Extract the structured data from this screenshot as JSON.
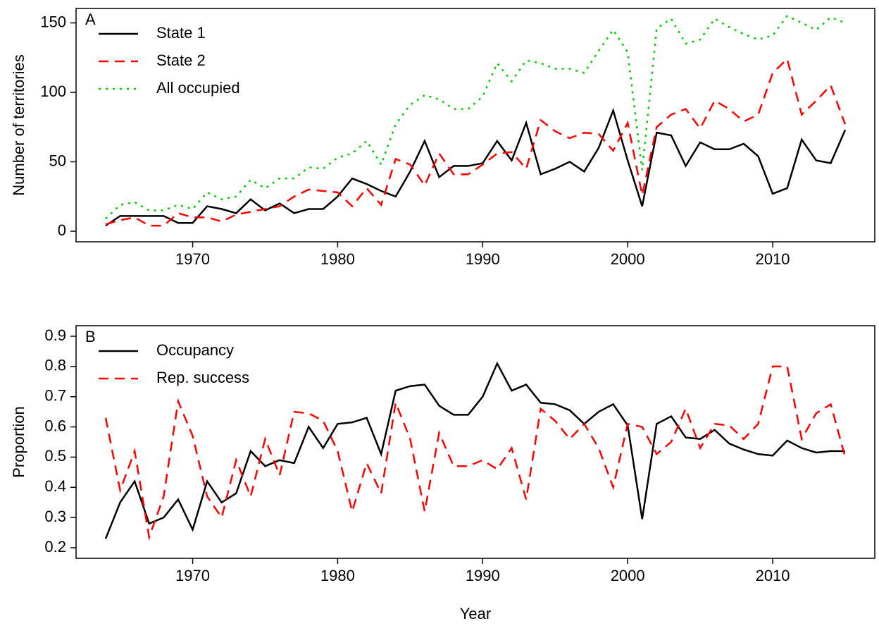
{
  "chart_data": [
    {
      "type": "line",
      "annotation": "A",
      "ylabel": "Number of territories",
      "x": [
        1964,
        1965,
        1966,
        1967,
        1968,
        1969,
        1970,
        1971,
        1972,
        1973,
        1974,
        1975,
        1976,
        1977,
        1978,
        1979,
        1980,
        1981,
        1982,
        1983,
        1984,
        1985,
        1986,
        1987,
        1988,
        1989,
        1990,
        1991,
        1992,
        1993,
        1994,
        1995,
        1996,
        1997,
        1998,
        1999,
        2000,
        2001,
        2002,
        2003,
        2004,
        2005,
        2006,
        2007,
        2008,
        2009,
        2010,
        2011,
        2012,
        2013,
        2014,
        2015
      ],
      "series": [
        {
          "name": "State 1",
          "color": "#000000",
          "linestyle": "solid",
          "values": [
            4,
            11,
            11,
            11,
            11,
            6,
            6,
            18,
            16,
            13,
            23,
            15,
            20,
            13,
            16,
            16,
            25,
            38,
            34,
            29,
            25,
            43,
            65,
            39,
            47,
            47,
            49,
            65,
            51,
            78,
            41,
            45,
            50,
            43,
            60,
            87,
            51,
            18,
            71,
            69,
            47,
            64,
            59,
            59,
            63,
            54,
            27,
            31,
            66,
            51,
            49,
            73
          ]
        },
        {
          "name": "State 2",
          "color": "#ff0000",
          "linestyle": "dashed",
          "values": [
            5,
            8,
            10,
            4,
            4,
            13,
            10,
            10,
            7,
            12,
            14,
            16,
            18,
            25,
            30,
            29,
            28,
            18,
            31,
            19,
            52,
            48,
            33,
            56,
            41,
            41,
            48,
            56,
            57,
            45,
            80,
            72,
            67,
            71,
            70,
            58,
            78,
            26,
            75,
            84,
            88,
            74,
            94,
            88,
            79,
            84,
            114,
            124,
            84,
            94,
            105,
            77
          ]
        },
        {
          "name": "All occupied",
          "color": "#00cd00",
          "linestyle": "dotted",
          "values": [
            9,
            19,
            21,
            15,
            15,
            19,
            16,
            28,
            23,
            25,
            37,
            31,
            38,
            38,
            46,
            45,
            53,
            56,
            65,
            48,
            77,
            91,
            98,
            95,
            88,
            88,
            97,
            121,
            108,
            123,
            121,
            117,
            117,
            114,
            130,
            145,
            129,
            44,
            146,
            153,
            135,
            138,
            153,
            147,
            142,
            138,
            141,
            155,
            150,
            145,
            154,
            150
          ]
        }
      ],
      "xlim": [
        1961.96,
        2017.04
      ],
      "xticks": [
        1970,
        1980,
        1990,
        2000,
        2010
      ],
      "ylim": [
        -7.6,
        160.4
      ],
      "yticks": [
        0,
        50,
        100,
        150
      ],
      "legend": "top-left"
    },
    {
      "type": "line",
      "annotation": "B",
      "ylabel": "Proportion",
      "xlabel": "Year",
      "x": [
        1964,
        1965,
        1966,
        1967,
        1968,
        1969,
        1970,
        1971,
        1972,
        1973,
        1974,
        1975,
        1976,
        1977,
        1978,
        1979,
        1980,
        1981,
        1982,
        1983,
        1984,
        1985,
        1986,
        1987,
        1988,
        1989,
        1990,
        1991,
        1992,
        1993,
        1994,
        1995,
        1996,
        1997,
        1998,
        1999,
        2000,
        2001,
        2002,
        2003,
        2004,
        2005,
        2006,
        2007,
        2008,
        2009,
        2010,
        2011,
        2012,
        2013,
        2014,
        2015
      ],
      "series": [
        {
          "name": "Occupancy",
          "color": "#000000",
          "linestyle": "solid",
          "values": [
            0.23,
            0.35,
            0.42,
            0.28,
            0.3,
            0.36,
            0.26,
            0.42,
            0.35,
            0.38,
            0.52,
            0.47,
            0.49,
            0.48,
            0.6,
            0.53,
            0.61,
            0.615,
            0.63,
            0.51,
            0.72,
            0.735,
            0.74,
            0.67,
            0.64,
            0.64,
            0.7,
            0.81,
            0.72,
            0.74,
            0.68,
            0.675,
            0.655,
            0.61,
            0.65,
            0.675,
            0.605,
            0.295,
            0.61,
            0.635,
            0.565,
            0.56,
            0.59,
            0.545,
            0.525,
            0.51,
            0.505,
            0.555,
            0.53,
            0.515,
            0.52,
            0.52
          ]
        },
        {
          "name": "Rep. success",
          "color": "#ff0000",
          "linestyle": "dashed",
          "values": [
            0.63,
            0.39,
            0.52,
            0.235,
            0.37,
            0.685,
            0.57,
            0.37,
            0.3,
            0.49,
            0.37,
            0.56,
            0.44,
            0.65,
            0.645,
            0.62,
            0.52,
            0.32,
            0.48,
            0.38,
            0.68,
            0.56,
            0.32,
            0.58,
            0.47,
            0.47,
            0.49,
            0.46,
            0.53,
            0.36,
            0.66,
            0.62,
            0.56,
            0.61,
            0.53,
            0.4,
            0.61,
            0.6,
            0.51,
            0.55,
            0.66,
            0.53,
            0.61,
            0.605,
            0.56,
            0.61,
            0.8,
            0.8,
            0.56,
            0.645,
            0.675,
            0.5
          ]
        }
      ],
      "xlim": [
        1961.96,
        2017.04
      ],
      "xticks": [
        1970,
        1980,
        1990,
        2000,
        2010
      ],
      "ylim": [
        0.165,
        0.935
      ],
      "yticks": [
        0.2,
        0.3,
        0.4,
        0.5,
        0.6,
        0.7,
        0.8,
        0.9
      ],
      "legend": "top-left"
    }
  ]
}
